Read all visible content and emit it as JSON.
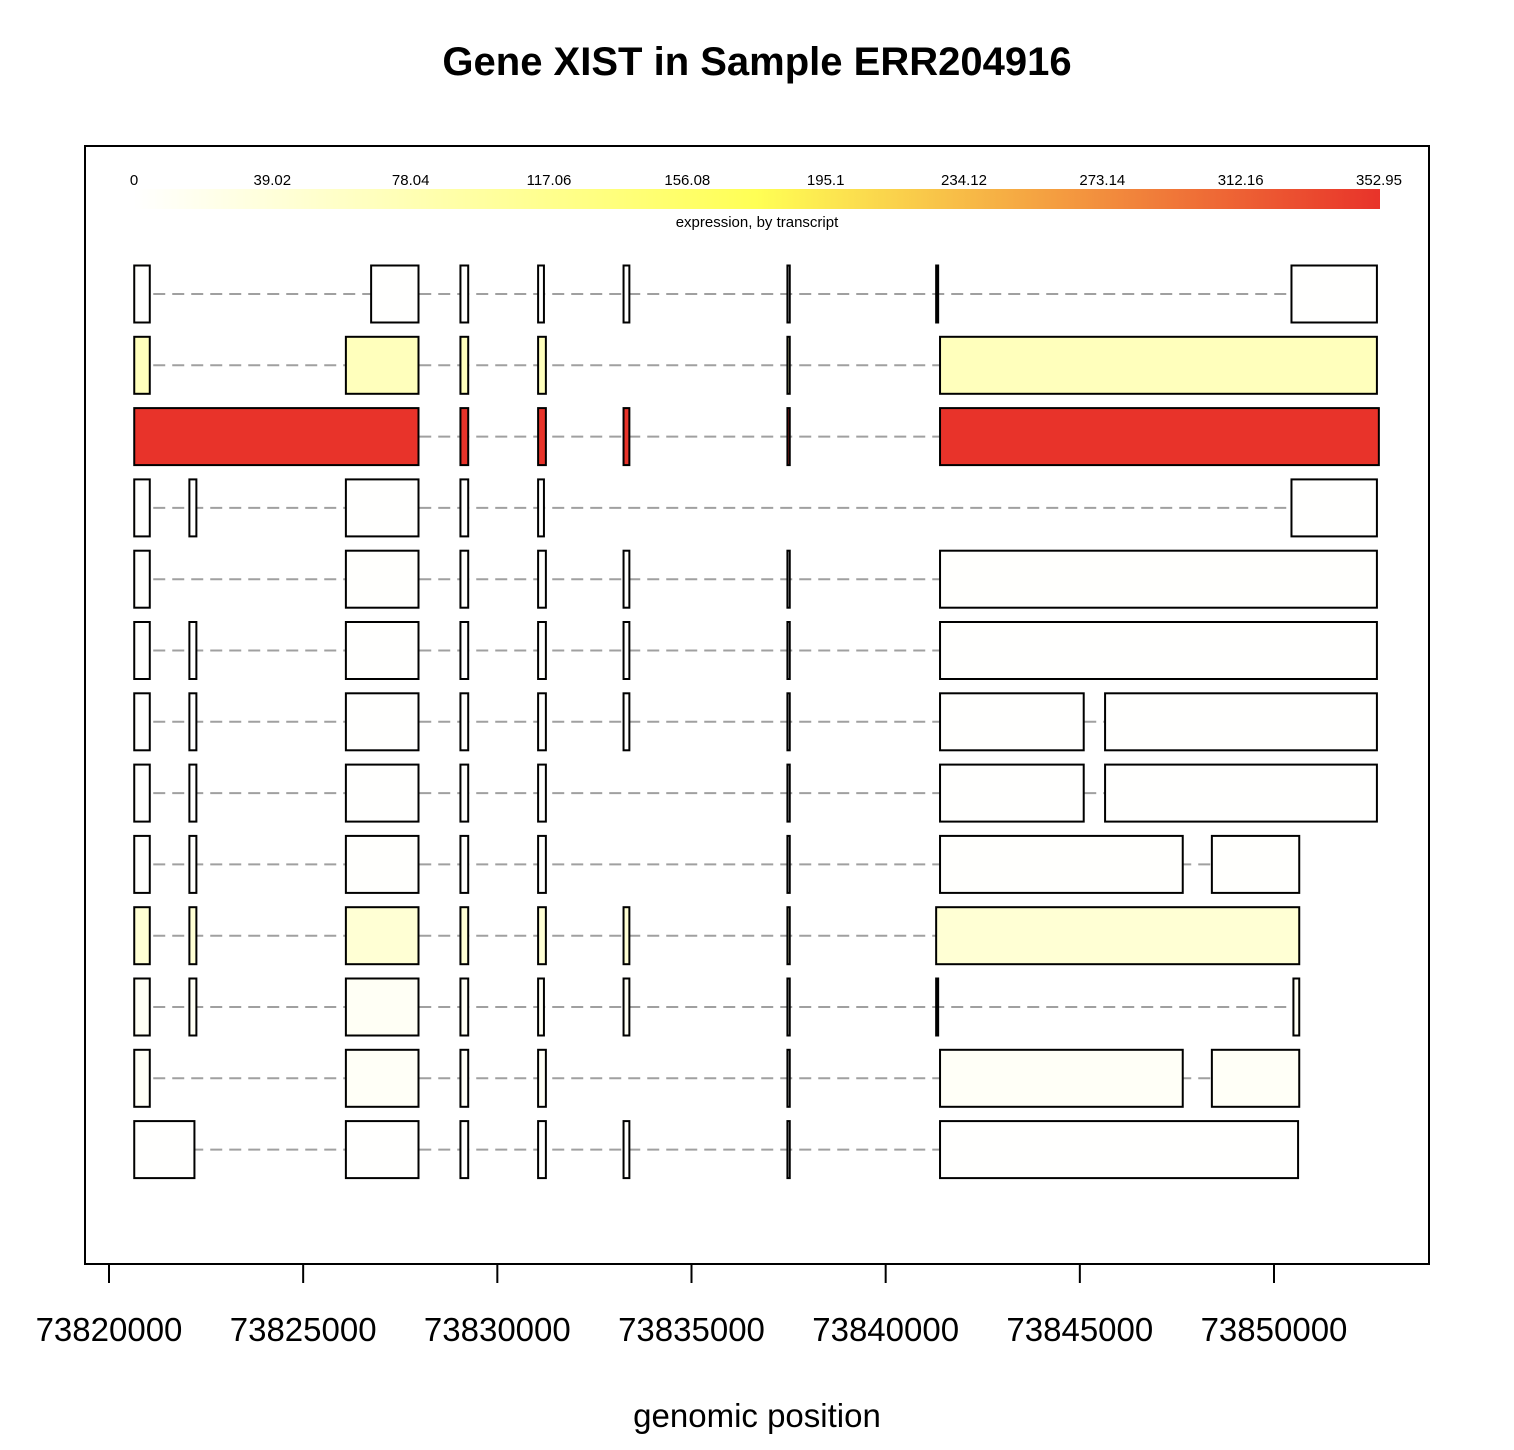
{
  "chart_data": {
    "type": "gene-structure",
    "title": "Gene XIST in Sample ERR204916",
    "xlabel": "genomic position",
    "xlim": [
      73819600,
      73852900
    ],
    "x_ticks": [
      "73820000",
      "73825000",
      "73830000",
      "73835000",
      "73840000",
      "73845000",
      "73850000"
    ],
    "x_tick_values": [
      73820000,
      73825000,
      73830000,
      73835000,
      73840000,
      73845000,
      73850000
    ],
    "colorbar": {
      "label": "expression, by transcript",
      "ticks": [
        "0",
        "39.02",
        "78.04",
        "117.06",
        "156.08",
        "195.1",
        "234.12",
        "273.14",
        "312.16",
        "352.95"
      ],
      "min": 0,
      "max": 352.95,
      "colors": [
        "#ffffff",
        "#ffff55",
        "#e8332a"
      ]
    },
    "intron_color": "#a0a0a0",
    "transcripts": [
      {
        "expression": 1,
        "exons": [
          [
            73820650,
            73821050
          ],
          [
            73826750,
            73827970
          ],
          [
            73829050,
            73829250
          ],
          [
            73831050,
            73831200
          ],
          [
            73833250,
            73833400
          ],
          [
            73837470,
            73837530
          ],
          [
            73841300,
            73841350
          ],
          [
            73850450,
            73852650
          ]
        ]
      },
      {
        "expression": 70,
        "exons": [
          [
            73820650,
            73821050
          ],
          [
            73826100,
            73827970
          ],
          [
            73829050,
            73829250
          ],
          [
            73831050,
            73831250
          ],
          [
            73837470,
            73837530
          ],
          [
            73841400,
            73852650
          ]
        ]
      },
      {
        "expression": 352.95,
        "exons": [
          [
            73820650,
            73827970
          ],
          [
            73829050,
            73829250
          ],
          [
            73831050,
            73831250
          ],
          [
            73833250,
            73833400
          ],
          [
            73837470,
            73837530
          ],
          [
            73841400,
            73852700
          ]
        ]
      },
      {
        "expression": 1,
        "exons": [
          [
            73820650,
            73821050
          ],
          [
            73822070,
            73822250
          ],
          [
            73826100,
            73827970
          ],
          [
            73829050,
            73829250
          ],
          [
            73831050,
            73831200
          ],
          [
            73850450,
            73852650
          ]
        ]
      },
      {
        "expression": 2,
        "exons": [
          [
            73820650,
            73821050
          ],
          [
            73826100,
            73827970
          ],
          [
            73829050,
            73829250
          ],
          [
            73831050,
            73831250
          ],
          [
            73833250,
            73833400
          ],
          [
            73837470,
            73837530
          ],
          [
            73841400,
            73852650
          ]
        ]
      },
      {
        "expression": 1,
        "exons": [
          [
            73820650,
            73821050
          ],
          [
            73822070,
            73822250
          ],
          [
            73826100,
            73827970
          ],
          [
            73829050,
            73829250
          ],
          [
            73831050,
            73831250
          ],
          [
            73833250,
            73833400
          ],
          [
            73837470,
            73837530
          ],
          [
            73841400,
            73852650
          ]
        ]
      },
      {
        "expression": 1,
        "exons": [
          [
            73820650,
            73821050
          ],
          [
            73822070,
            73822250
          ],
          [
            73826100,
            73827970
          ],
          [
            73829050,
            73829250
          ],
          [
            73831050,
            73831250
          ],
          [
            73833250,
            73833400
          ],
          [
            73837470,
            73837530
          ],
          [
            73841400,
            73845100
          ],
          [
            73845650,
            73852650
          ]
        ]
      },
      {
        "expression": 1,
        "exons": [
          [
            73820650,
            73821050
          ],
          [
            73822070,
            73822250
          ],
          [
            73826100,
            73827970
          ],
          [
            73829050,
            73829250
          ],
          [
            73831050,
            73831250
          ],
          [
            73837470,
            73837530
          ],
          [
            73841400,
            73845100
          ],
          [
            73845650,
            73852650
          ]
        ]
      },
      {
        "expression": 2,
        "exons": [
          [
            73820650,
            73821050
          ],
          [
            73822070,
            73822250
          ],
          [
            73826100,
            73827970
          ],
          [
            73829050,
            73829250
          ],
          [
            73831050,
            73831250
          ],
          [
            73837470,
            73837530
          ],
          [
            73841400,
            73847650
          ],
          [
            73848400,
            73850650
          ]
        ]
      },
      {
        "expression": 45,
        "exons": [
          [
            73820650,
            73821050
          ],
          [
            73822070,
            73822250
          ],
          [
            73826100,
            73827970
          ],
          [
            73829050,
            73829250
          ],
          [
            73831050,
            73831250
          ],
          [
            73833250,
            73833400
          ],
          [
            73837470,
            73837530
          ],
          [
            73841300,
            73850650
          ]
        ]
      },
      {
        "expression": 10,
        "exons": [
          [
            73820650,
            73821050
          ],
          [
            73822070,
            73822250
          ],
          [
            73826100,
            73827970
          ],
          [
            73829050,
            73829250
          ],
          [
            73831050,
            73831200
          ],
          [
            73833250,
            73833400
          ],
          [
            73837470,
            73837530
          ],
          [
            73841300,
            73841350
          ],
          [
            73850500,
            73850650
          ]
        ]
      },
      {
        "expression": 8,
        "exons": [
          [
            73820650,
            73821050
          ],
          [
            73826100,
            73827970
          ],
          [
            73829050,
            73829250
          ],
          [
            73831050,
            73831250
          ],
          [
            73837470,
            73837530
          ],
          [
            73841400,
            73847650
          ],
          [
            73848400,
            73850650
          ]
        ]
      },
      {
        "expression": 1,
        "exons": [
          [
            73820650,
            73822200
          ],
          [
            73826100,
            73827970
          ],
          [
            73829050,
            73829250
          ],
          [
            73831050,
            73831250
          ],
          [
            73833250,
            73833400
          ],
          [
            73837470,
            73837530
          ],
          [
            73841400,
            73850620
          ]
        ]
      }
    ]
  }
}
